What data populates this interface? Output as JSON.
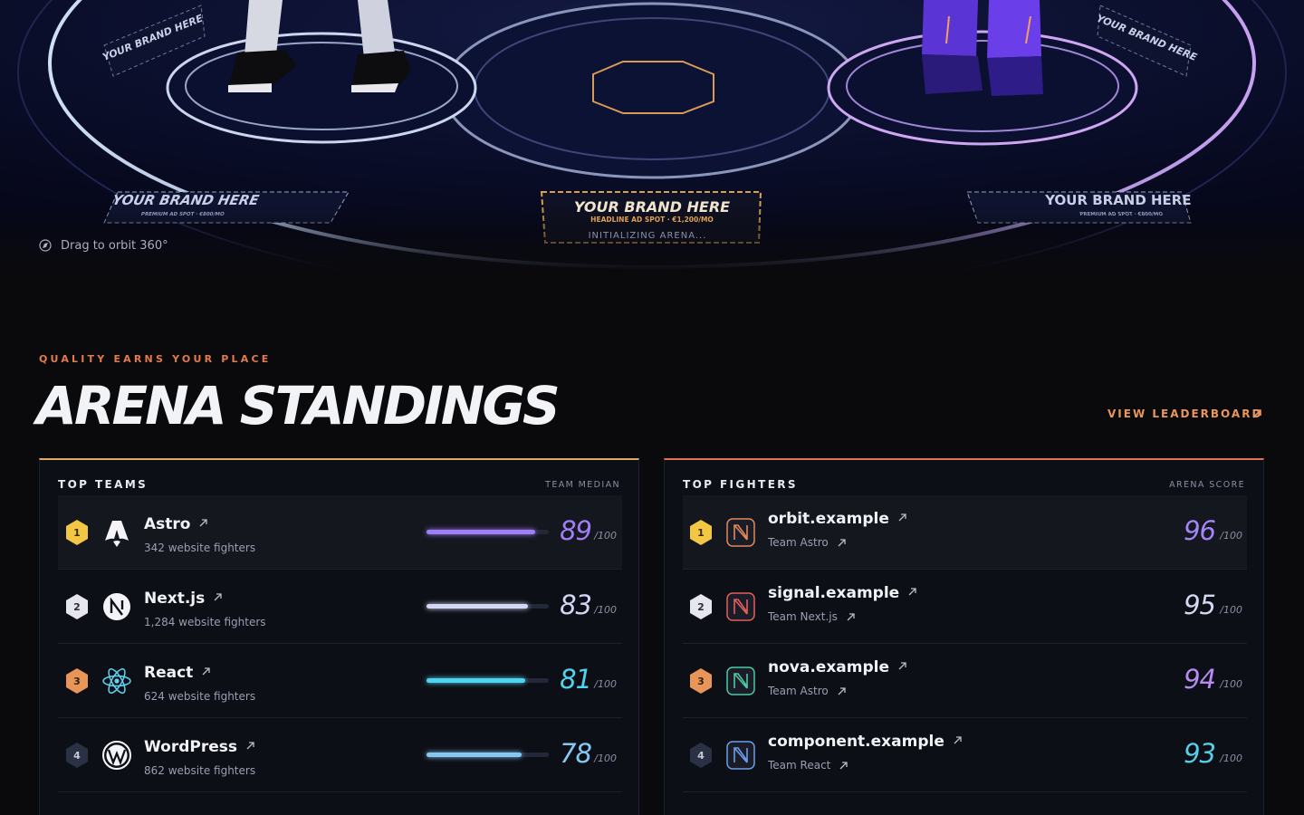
{
  "arena": {
    "signs": [
      {
        "title": "YOUR BRAND HERE",
        "subtitle": "PREMIUM AD SPOT · €800/MO"
      },
      {
        "title": "YOUR BRAND HERE",
        "subtitle": "HEADLINE AD SPOT · €1,200/MO"
      },
      {
        "title": "YOUR BRAND HERE",
        "subtitle": "PREMIUM AD SPOT · €800/MO"
      },
      {
        "title": "YOUR BRAND HERE"
      },
      {
        "title": "YOUR BRAND HERE"
      }
    ],
    "status": "INITIALIZING ARENA...",
    "hint": "Drag to orbit 360°"
  },
  "section": {
    "eyebrow": "QUALITY EARNS YOUR PLACE",
    "title": "ARENA STANDINGS",
    "link": "VIEW LEADERBOARD"
  },
  "teams": {
    "title": "TOP TEAMS",
    "column": "TEAM MEDIAN",
    "score_max": {
      "value": 100,
      "label": "/100"
    },
    "rows": [
      {
        "rank": 1,
        "name": "Astro",
        "fighters": "342 website fighters",
        "score": 89,
        "color": "#a07ef7"
      },
      {
        "rank": 2,
        "name": "Next.js",
        "fighters": "1,284 website fighters",
        "score": 83,
        "color": "#d4d6f6"
      },
      {
        "rank": 3,
        "name": "React",
        "fighters": "624 website fighters",
        "score": 81,
        "color": "#4fd3ef"
      },
      {
        "rank": 4,
        "name": "WordPress",
        "fighters": "862 website fighters",
        "score": 78,
        "color": "#86c8f4"
      }
    ]
  },
  "fighters": {
    "title": "TOP FIGHTERS",
    "column": "ARENA SCORE",
    "score_max": {
      "value": 100,
      "label": "/100"
    },
    "rows": [
      {
        "rank": 1,
        "name": "orbit.example",
        "team": "Team Astro",
        "score": 96,
        "color": "#a584f8"
      },
      {
        "rank": 2,
        "name": "signal.example",
        "team": "Team Next.js",
        "score": 95,
        "color": "#d6d9f4"
      },
      {
        "rank": 3,
        "name": "nova.example",
        "team": "Team Astro",
        "score": 94,
        "color": "#b48cf2"
      },
      {
        "rank": 4,
        "name": "component.example",
        "team": "Team React",
        "score": 93,
        "color": "#57cfe9"
      }
    ]
  }
}
